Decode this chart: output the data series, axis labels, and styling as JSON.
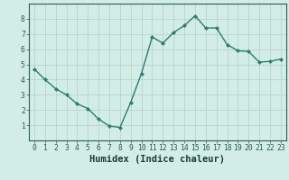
{
  "x": [
    0,
    1,
    2,
    3,
    4,
    5,
    6,
    7,
    8,
    9,
    10,
    11,
    12,
    13,
    14,
    15,
    16,
    17,
    18,
    19,
    20,
    21,
    22,
    23
  ],
  "y": [
    4.7,
    4.0,
    3.4,
    3.0,
    2.4,
    2.1,
    1.4,
    0.95,
    0.85,
    2.5,
    4.4,
    6.8,
    6.4,
    7.1,
    7.55,
    8.2,
    7.4,
    7.4,
    6.3,
    5.9,
    5.85,
    5.15,
    5.2,
    5.35
  ],
  "line_color": "#2d7d6e",
  "marker": "D",
  "marker_size": 2.0,
  "linewidth": 1.0,
  "xlabel": "Humidex (Indice chaleur)",
  "xlim": [
    -0.5,
    23.5
  ],
  "ylim": [
    0,
    9
  ],
  "yticks": [
    1,
    2,
    3,
    4,
    5,
    6,
    7,
    8
  ],
  "xticks": [
    0,
    1,
    2,
    3,
    4,
    5,
    6,
    7,
    8,
    9,
    10,
    11,
    12,
    13,
    14,
    15,
    16,
    17,
    18,
    19,
    20,
    21,
    22,
    23
  ],
  "bg_color": "#d2ece6",
  "grid_color": "#b8d4cc",
  "tick_color": "#2d5c52",
  "label_color": "#1a3d36",
  "xlabel_fontsize": 7.5,
  "tick_fontsize": 5.8
}
